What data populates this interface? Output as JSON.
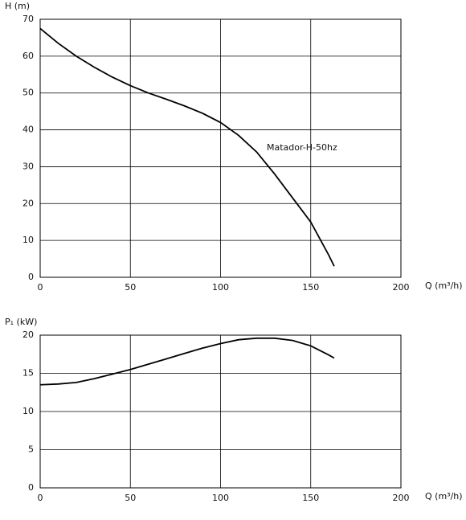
{
  "chart_data": [
    {
      "type": "line",
      "y_label": "H (m)",
      "x_label": "Q (m³/h)",
      "annotation": "Matador-H-50hz",
      "x": [
        0,
        10,
        20,
        30,
        40,
        50,
        60,
        70,
        80,
        90,
        100,
        110,
        120,
        130,
        140,
        150,
        160,
        163
      ],
      "values": [
        67.5,
        63.5,
        60,
        57,
        54.3,
        52,
        50,
        48.3,
        46.5,
        44.5,
        42,
        38.5,
        34,
        28,
        21.5,
        15,
        6,
        3
      ],
      "color": "#000000",
      "xlim": [
        0,
        200
      ],
      "xticks": [
        0,
        50,
        100,
        150,
        200
      ],
      "ylim": [
        0,
        70
      ],
      "yticks": [
        0,
        10,
        20,
        30,
        40,
        50,
        60,
        70
      ],
      "grid": true
    },
    {
      "type": "line",
      "y_label": "P₁ (kW)",
      "x_label": "Q (m³/h)",
      "x": [
        0,
        10,
        20,
        30,
        40,
        50,
        60,
        70,
        80,
        90,
        100,
        110,
        120,
        130,
        140,
        150,
        160,
        163
      ],
      "values": [
        13.5,
        13.6,
        13.8,
        14.3,
        14.9,
        15.5,
        16.2,
        16.9,
        17.6,
        18.3,
        18.9,
        19.4,
        19.6,
        19.6,
        19.3,
        18.6,
        17.4,
        17.0
      ],
      "color": "#000000",
      "xlim": [
        0,
        200
      ],
      "xticks": [
        0,
        50,
        100,
        150,
        200
      ],
      "ylim": [
        0,
        20
      ],
      "yticks": [
        0,
        5,
        10,
        15,
        20
      ],
      "grid": true
    }
  ]
}
